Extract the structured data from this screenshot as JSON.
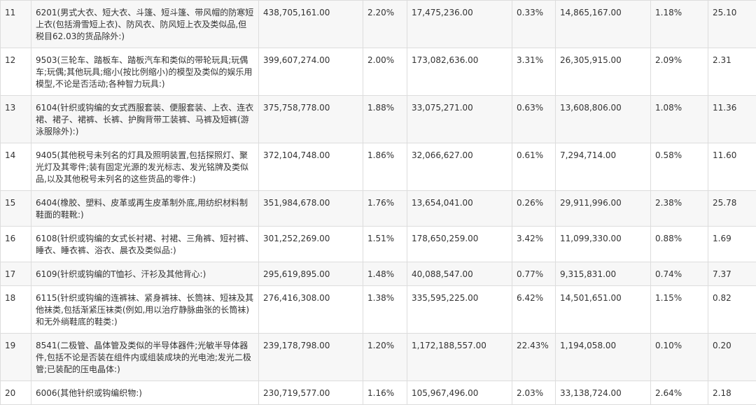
{
  "table": {
    "rows": [
      [
        "11",
        "6201(男式大衣、短大衣、斗篷、短斗篷、带风帽的防寒短上衣(包括滑雪短上衣)、防风衣、防风短上衣及类似品,但税目62.03的货品除外:)",
        "438,705,161.00",
        "2.20%",
        "17,475,236.00",
        "0.33%",
        "14,865,167.00",
        "1.18%",
        "25.10"
      ],
      [
        "12",
        "9503(三轮车、踏板车、踏板汽车和类似的带轮玩具;玩偶车;玩偶;其他玩具;缩小(按比例缩小)的模型及类似的娱乐用模型,不论是否活动;各种智力玩具:)",
        "399,607,274.00",
        "2.00%",
        "173,082,636.00",
        "3.31%",
        "26,305,915.00",
        "2.09%",
        "2.31"
      ],
      [
        "13",
        "6104(针织或钩编的女式西服套装、便服套装、上衣、连衣裙、裙子、裙裤、长裤、护胸背带工装裤、马裤及短裤(游泳服除外):)",
        "375,758,778.00",
        "1.88%",
        "33,075,271.00",
        "0.63%",
        "13,608,806.00",
        "1.08%",
        "11.36"
      ],
      [
        "14",
        "9405(其他税号未列名的灯具及照明装置,包括探照灯、聚光灯及其零件;装有固定光源的发光标志、发光铭牌及类似品,以及其他税号未列名的这些货品的零件:)",
        "372,104,748.00",
        "1.86%",
        "32,066,627.00",
        "0.61%",
        "7,294,714.00",
        "0.58%",
        "11.60"
      ],
      [
        "15",
        "6404(橡胶、塑料、皮革或再生皮革制外底,用纺织材料制鞋面的鞋靴:)",
        "351,984,678.00",
        "1.76%",
        "13,654,041.00",
        "0.26%",
        "29,911,996.00",
        "2.38%",
        "25.78"
      ],
      [
        "16",
        "6108(针织或钩编的女式长衬裙、衬裙、三角裤、短衬裤、睡衣、睡衣裤、浴衣、晨衣及类似品:)",
        "301,252,269.00",
        "1.51%",
        "178,650,259.00",
        "3.42%",
        "11,099,330.00",
        "0.88%",
        "1.69"
      ],
      [
        "17",
        "6109(针织或钩编的T恤衫、汗衫及其他背心:)",
        "295,619,895.00",
        "1.48%",
        "40,088,547.00",
        "0.77%",
        "9,315,831.00",
        "0.74%",
        "7.37"
      ],
      [
        "18",
        "6115(针织或钩编的连裤袜、紧身裤袜、长筒袜、短袜及其他袜类,包括渐紧压袜类(例如,用以治疗静脉曲张的长筒袜)和无外绱鞋底的鞋类:)",
        "276,416,308.00",
        "1.38%",
        "335,595,225.00",
        "6.42%",
        "14,501,651.00",
        "1.15%",
        "0.82"
      ],
      [
        "19",
        "8541(二极管、晶体管及类似的半导体器件;光敏半导体器件,包括不论是否装在组件内或组装成块的光电池;发光二极管;已装配的压电晶体:)",
        "239,178,798.00",
        "1.20%",
        "1,172,188,557.00",
        "22.43%",
        "1,194,058.00",
        "0.10%",
        "0.20"
      ],
      [
        "20",
        "6006(其他针织或钩编织物:)",
        "230,719,577.00",
        "1.16%",
        "105,967,496.00",
        "2.03%",
        "33,138,724.00",
        "2.64%",
        "2.18"
      ]
    ]
  }
}
